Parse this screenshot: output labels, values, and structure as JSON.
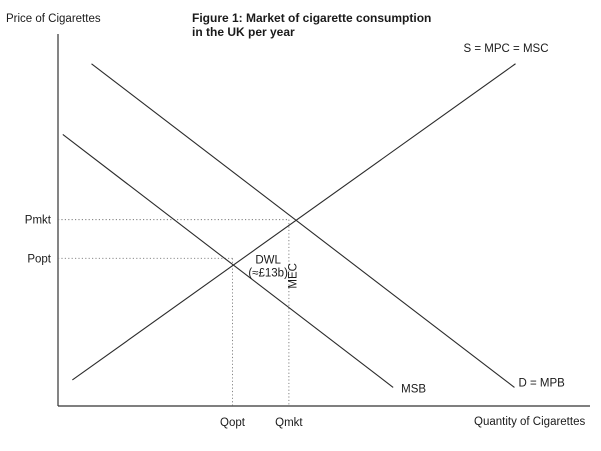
{
  "chart_data": {
    "type": "line",
    "title": "Figure 1: Market of cigarette consumption",
    "subtitle": "in the UK per year",
    "xlabel": "Quantity of Cigarettes",
    "ylabel": "Price of Cigarettes",
    "xlim": [
      0,
      10
    ],
    "ylim": [
      0,
      10
    ],
    "series": [
      {
        "name": "S = MPC = MSC",
        "points": [
          [
            0.27,
            0.7
          ],
          [
            8.6,
            9.2
          ]
        ]
      },
      {
        "name": "D = MPB",
        "points": [
          [
            0.63,
            9.2
          ],
          [
            8.58,
            0.5
          ]
        ]
      },
      {
        "name": "MSB",
        "points": [
          [
            0.09,
            7.3
          ],
          [
            6.3,
            0.5
          ]
        ]
      }
    ],
    "x_ticks": [
      {
        "label": "Qopt",
        "value": 3.28
      },
      {
        "label": "Qmkt",
        "value": 4.34
      }
    ],
    "y_ticks": [
      {
        "label": "Pmkt",
        "value": 5.01
      },
      {
        "label": "Popt",
        "value": 3.97
      }
    ],
    "annotations": [
      {
        "label": "DWL",
        "x": 3.95,
        "y": 3.83
      },
      {
        "label": "(≈£13b)",
        "x": 3.95,
        "y": 3.48
      },
      {
        "label": "MEC",
        "x": 4.48,
        "y": 3.5,
        "rotation": -90
      }
    ],
    "grid": false
  }
}
